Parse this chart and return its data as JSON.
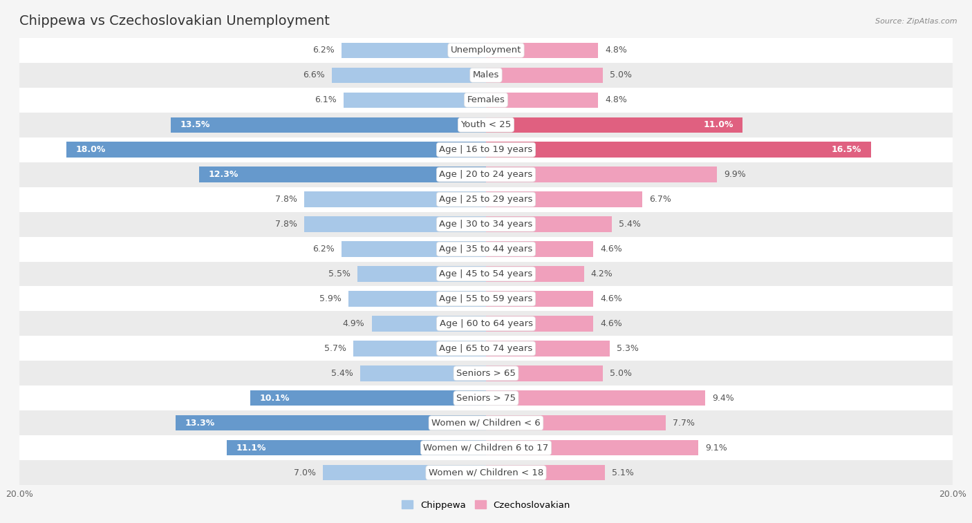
{
  "title": "Chippewa vs Czechoslovakian Unemployment",
  "source": "Source: ZipAtlas.com",
  "categories": [
    "Unemployment",
    "Males",
    "Females",
    "Youth < 25",
    "Age | 16 to 19 years",
    "Age | 20 to 24 years",
    "Age | 25 to 29 years",
    "Age | 30 to 34 years",
    "Age | 35 to 44 years",
    "Age | 45 to 54 years",
    "Age | 55 to 59 years",
    "Age | 60 to 64 years",
    "Age | 65 to 74 years",
    "Seniors > 65",
    "Seniors > 75",
    "Women w/ Children < 6",
    "Women w/ Children 6 to 17",
    "Women w/ Children < 18"
  ],
  "chippewa": [
    6.2,
    6.6,
    6.1,
    13.5,
    18.0,
    12.3,
    7.8,
    7.8,
    6.2,
    5.5,
    5.9,
    4.9,
    5.7,
    5.4,
    10.1,
    13.3,
    11.1,
    7.0
  ],
  "czechoslovakian": [
    4.8,
    5.0,
    4.8,
    11.0,
    16.5,
    9.9,
    6.7,
    5.4,
    4.6,
    4.2,
    4.6,
    4.6,
    5.3,
    5.0,
    9.4,
    7.7,
    9.1,
    5.1
  ],
  "chippewa_color": "#a8c8e8",
  "czechoslovakian_color": "#f0a0bc",
  "chippewa_highlight_color": "#6699cc",
  "czechoslovakian_highlight_color": "#e06080",
  "highlight_threshold": 10.0,
  "bg_color": "#ffffff",
  "row_light": "#ffffff",
  "row_dark": "#ebebeb",
  "outer_bg": "#f5f5f5",
  "max_value": 20.0,
  "label_fontsize": 9.5,
  "title_fontsize": 14,
  "value_fontsize": 9
}
